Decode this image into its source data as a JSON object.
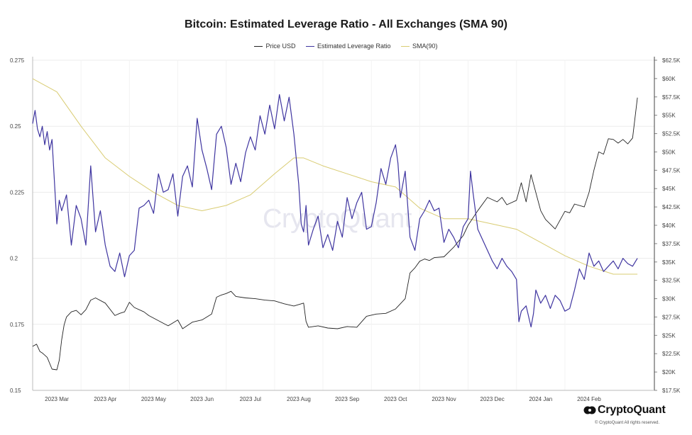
{
  "chart_data": {
    "type": "line",
    "title": "Bitcoin: Estimated Leverage Ratio - All Exchanges (SMA 90)",
    "legend": [
      "Price USD",
      "Estimated Leverage Ratio",
      "SMA(90)"
    ],
    "legend_placement": "top-center",
    "colors": {
      "price": "#222222",
      "leverage": "#3f35a0",
      "sma": "#d9cc73",
      "grid": "#ececec"
    },
    "x_tick_labels": [
      "2023 Mar",
      "2023 Apr",
      "2023 May",
      "2023 Jun",
      "2023 Jul",
      "2023 Aug",
      "2023 Sep",
      "2023 Oct",
      "2023 Nov",
      "2023 Dec",
      "2024 Jan",
      "2024 Feb"
    ],
    "y_left": {
      "min": 0.15,
      "max": 0.275,
      "ticks": [
        0.15,
        0.175,
        0.2,
        0.225,
        0.25,
        0.275
      ],
      "tick_labels": [
        "0.15",
        "0.175",
        "0.2",
        "0.225",
        "0.25",
        "0.275"
      ]
    },
    "y_right": {
      "min": 17500,
      "max": 62500,
      "ticks": [
        17500,
        20000,
        22500,
        25000,
        27500,
        30000,
        32500,
        35000,
        37500,
        40000,
        42500,
        45000,
        47500,
        50000,
        52500,
        55000,
        57500,
        60000,
        62500
      ],
      "tick_labels": [
        "$17.5K",
        "$20K",
        "$22.5K",
        "$25K",
        "$27.5K",
        "$30K",
        "$32.5K",
        "$35K",
        "$37.5K",
        "$40K",
        "$42.5K",
        "$45K",
        "$47.5K",
        "$50K",
        "$52.5K",
        "$55K",
        "$57.5K",
        "$60K",
        "$62.5K"
      ]
    },
    "x_range_months": [
      0,
      12.85
    ],
    "series": [
      {
        "name": "Price USD",
        "axis": "right",
        "x": [
          0,
          0.08,
          0.15,
          0.2,
          0.3,
          0.4,
          0.5,
          0.55,
          0.6,
          0.65,
          0.7,
          0.8,
          0.9,
          1.0,
          1.1,
          1.2,
          1.3,
          1.5,
          1.7,
          1.8,
          1.9,
          2.0,
          2.1,
          2.3,
          2.4,
          2.6,
          2.8,
          3.0,
          3.1,
          3.3,
          3.5,
          3.7,
          3.8,
          3.9,
          4.0,
          4.1,
          4.2,
          4.4,
          4.6,
          4.7,
          4.8,
          5.0,
          5.2,
          5.4,
          5.6,
          5.65,
          5.7,
          5.9,
          6.1,
          6.3,
          6.5,
          6.7,
          6.9,
          7.1,
          7.3,
          7.5,
          7.7,
          7.8,
          7.9,
          8.0,
          8.1,
          8.2,
          8.3,
          8.5,
          8.7,
          8.8,
          8.9,
          9.0,
          9.2,
          9.4,
          9.6,
          9.7,
          9.8,
          10.0,
          10.1,
          10.2,
          10.3,
          10.5,
          10.6,
          10.8,
          11.0,
          11.1,
          11.2,
          11.4,
          11.5,
          11.6,
          11.7,
          11.8,
          11.9,
          12.0,
          12.1,
          12.2,
          12.3,
          12.4,
          12.5
        ],
        "y": [
          23500,
          23800,
          22800,
          22600,
          22000,
          20400,
          20300,
          21600,
          24400,
          26400,
          27500,
          28200,
          28400,
          27800,
          28500,
          29800,
          30100,
          29400,
          27700,
          28000,
          28200,
          29500,
          28800,
          28200,
          27700,
          27000,
          26300,
          27100,
          25900,
          26800,
          27100,
          27900,
          30200,
          30500,
          30700,
          31000,
          30300,
          30100,
          30000,
          29900,
          29800,
          29700,
          29300,
          29000,
          29400,
          26900,
          26100,
          26300,
          26000,
          25900,
          26200,
          26100,
          27600,
          27900,
          28000,
          28600,
          30000,
          33500,
          34200,
          35100,
          35400,
          35200,
          35600,
          35700,
          37000,
          37800,
          38600,
          40000,
          42000,
          43800,
          43200,
          43800,
          42800,
          43400,
          45800,
          43200,
          46900,
          42000,
          40800,
          39500,
          41900,
          41700,
          42900,
          42500,
          44500,
          47500,
          50000,
          49700,
          51800,
          51700,
          51200,
          51700,
          51100,
          51900,
          57400
        ]
      },
      {
        "name": "Estimated Leverage Ratio",
        "axis": "left",
        "x": [
          0,
          0.05,
          0.1,
          0.15,
          0.2,
          0.25,
          0.3,
          0.35,
          0.4,
          0.5,
          0.55,
          0.6,
          0.7,
          0.8,
          0.9,
          1.0,
          1.1,
          1.2,
          1.3,
          1.4,
          1.5,
          1.6,
          1.7,
          1.8,
          1.9,
          2.0,
          2.1,
          2.2,
          2.3,
          2.4,
          2.5,
          2.6,
          2.7,
          2.8,
          2.9,
          3.0,
          3.1,
          3.2,
          3.3,
          3.4,
          3.5,
          3.6,
          3.7,
          3.8,
          3.9,
          4.0,
          4.1,
          4.2,
          4.3,
          4.4,
          4.5,
          4.6,
          4.7,
          4.8,
          4.9,
          5.0,
          5.1,
          5.2,
          5.3,
          5.4,
          5.5,
          5.55,
          5.6,
          5.65,
          5.7,
          5.8,
          5.9,
          6.0,
          6.1,
          6.2,
          6.3,
          6.4,
          6.5,
          6.6,
          6.7,
          6.8,
          6.9,
          7.0,
          7.1,
          7.2,
          7.3,
          7.4,
          7.5,
          7.55,
          7.6,
          7.7,
          7.8,
          7.9,
          8.0,
          8.1,
          8.2,
          8.3,
          8.4,
          8.5,
          8.6,
          8.7,
          8.8,
          8.9,
          9.0,
          9.05,
          9.1,
          9.2,
          9.3,
          9.4,
          9.5,
          9.6,
          9.7,
          9.8,
          9.9,
          10.0,
          10.05,
          10.1,
          10.2,
          10.3,
          10.35,
          10.4,
          10.5,
          10.6,
          10.7,
          10.8,
          10.9,
          11.0,
          11.1,
          11.2,
          11.3,
          11.4,
          11.5,
          11.6,
          11.7,
          11.8,
          11.9,
          12.0,
          12.1,
          12.2,
          12.3,
          12.4,
          12.5
        ],
        "y": [
          0.251,
          0.256,
          0.249,
          0.246,
          0.25,
          0.243,
          0.248,
          0.241,
          0.245,
          0.213,
          0.222,
          0.218,
          0.224,
          0.205,
          0.22,
          0.215,
          0.205,
          0.235,
          0.21,
          0.218,
          0.205,
          0.197,
          0.195,
          0.202,
          0.193,
          0.201,
          0.203,
          0.219,
          0.22,
          0.222,
          0.217,
          0.232,
          0.225,
          0.226,
          0.232,
          0.216,
          0.231,
          0.235,
          0.227,
          0.253,
          0.241,
          0.234,
          0.226,
          0.247,
          0.25,
          0.242,
          0.228,
          0.236,
          0.229,
          0.24,
          0.246,
          0.241,
          0.254,
          0.247,
          0.258,
          0.249,
          0.262,
          0.252,
          0.261,
          0.247,
          0.228,
          0.213,
          0.21,
          0.22,
          0.205,
          0.211,
          0.216,
          0.204,
          0.209,
          0.203,
          0.214,
          0.208,
          0.223,
          0.215,
          0.221,
          0.225,
          0.211,
          0.212,
          0.221,
          0.234,
          0.228,
          0.238,
          0.243,
          0.236,
          0.223,
          0.233,
          0.208,
          0.203,
          0.215,
          0.218,
          0.222,
          0.218,
          0.219,
          0.206,
          0.211,
          0.208,
          0.204,
          0.212,
          0.215,
          0.233,
          0.225,
          0.211,
          0.207,
          0.203,
          0.199,
          0.196,
          0.2,
          0.197,
          0.195,
          0.192,
          0.176,
          0.18,
          0.182,
          0.174,
          0.179,
          0.188,
          0.183,
          0.186,
          0.181,
          0.186,
          0.184,
          0.18,
          0.181,
          0.188,
          0.196,
          0.192,
          0.202,
          0.197,
          0.199,
          0.195,
          0.197,
          0.199,
          0.196,
          0.2,
          0.198,
          0.197,
          0.2
        ]
      },
      {
        "name": "SMA(90)",
        "axis": "left",
        "x": [
          0,
          0.5,
          1.0,
          1.5,
          2.0,
          2.5,
          3.0,
          3.5,
          4.0,
          4.5,
          5.0,
          5.4,
          5.6,
          6.0,
          6.5,
          7.0,
          7.5,
          8.0,
          8.5,
          9.0,
          9.5,
          10.0,
          10.5,
          11.0,
          11.5,
          12.0,
          12.5
        ],
        "y": [
          0.268,
          0.263,
          0.25,
          0.238,
          0.231,
          0.225,
          0.22,
          0.218,
          0.22,
          0.224,
          0.232,
          0.238,
          0.238,
          0.235,
          0.232,
          0.229,
          0.227,
          0.219,
          0.215,
          0.215,
          0.213,
          0.211,
          0.206,
          0.201,
          0.197,
          0.194,
          0.194
        ]
      }
    ]
  },
  "brand": {
    "name": "CryptoQuant",
    "copyright": "© CryptoQuant All rights reserved.",
    "watermark": "CryptoQuant"
  }
}
